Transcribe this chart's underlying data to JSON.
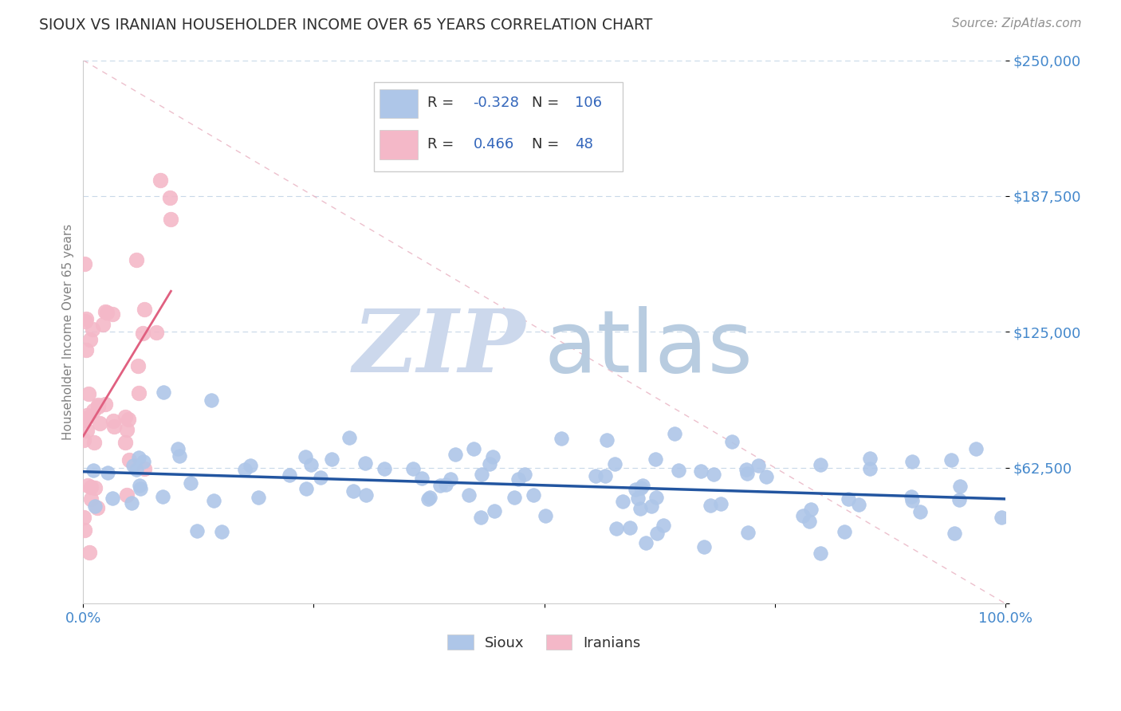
{
  "title": "SIOUX VS IRANIAN HOUSEHOLDER INCOME OVER 65 YEARS CORRELATION CHART",
  "source_text": "Source: ZipAtlas.com",
  "ylabel": "Householder Income Over 65 years",
  "xlim": [
    0,
    1.0
  ],
  "ylim": [
    0,
    250000
  ],
  "ytick_values": [
    0,
    62500,
    125000,
    187500,
    250000
  ],
  "ytick_labels": [
    "",
    "$62,500",
    "$125,000",
    "$187,500",
    "$250,000"
  ],
  "sioux_color": "#aec6e8",
  "sioux_edge_color": "#aec6e8",
  "sioux_line_color": "#2255a0",
  "iranian_color": "#f4b8c8",
  "iranian_edge_color": "#f4b8c8",
  "iranian_line_color": "#e06080",
  "diagonal_color": "#e8b0c0",
  "watermark_zip_color": "#ccd8ec",
  "watermark_atlas_color": "#b8cce0",
  "title_color": "#303030",
  "axis_label_color": "#808080",
  "tick_label_color": "#4488cc",
  "grid_color": "#c8d8e8",
  "source_color": "#909090",
  "legend_text_dark": "#303030",
  "legend_value_color": "#3366bb",
  "background": "#ffffff",
  "sioux_R": -0.328,
  "sioux_N": 106,
  "iranian_R": 0.466,
  "iranian_N": 48
}
